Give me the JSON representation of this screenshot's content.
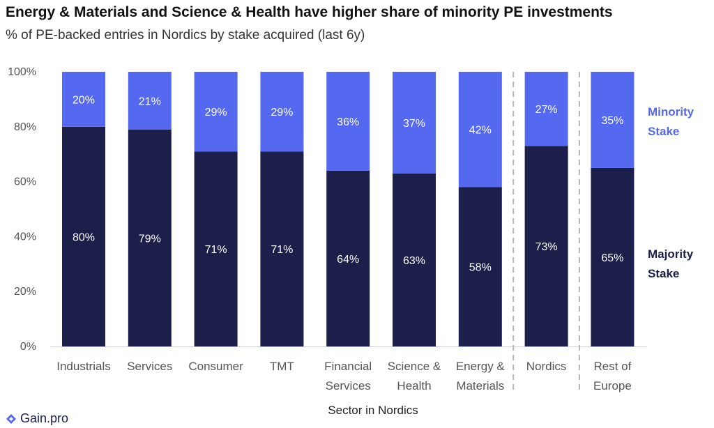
{
  "title": "Energy & Materials and Science & Health have higher share of minority PE investments",
  "subtitle": "% of PE-backed entries in Nordics by stake acquired (last 6y)",
  "brand": {
    "name": "Gain.pro"
  },
  "colors": {
    "minority": "#5468f0",
    "majority": "#1c1f4a"
  },
  "chart_data": {
    "type": "bar",
    "stacked": true,
    "categories": [
      [
        "Industrials"
      ],
      [
        "Services"
      ],
      [
        "Consumer"
      ],
      [
        "TMT"
      ],
      [
        "Financial",
        "Services"
      ],
      [
        "Science &",
        "Health"
      ],
      [
        "Energy &",
        "Materials"
      ],
      [
        "Nordics"
      ],
      [
        "Rest of",
        "Europe"
      ]
    ],
    "series": [
      {
        "name": "Majority Stake",
        "label_lines": [
          "Majority",
          "Stake"
        ],
        "values": [
          80,
          79,
          71,
          71,
          64,
          63,
          58,
          73,
          65
        ]
      },
      {
        "name": "Minority Stake",
        "label_lines": [
          "Minority",
          "Stake"
        ],
        "values": [
          20,
          21,
          29,
          29,
          36,
          37,
          42,
          27,
          35
        ]
      }
    ],
    "value_format": "%",
    "xlabel": "Sector in Nordics",
    "ylabel": "",
    "ylim": [
      0,
      100
    ],
    "yticks": [
      "0%",
      "20%",
      "40%",
      "60%",
      "80%",
      "100%"
    ],
    "separators_after": [
      6,
      7
    ],
    "legend": "right",
    "grid": false
  }
}
